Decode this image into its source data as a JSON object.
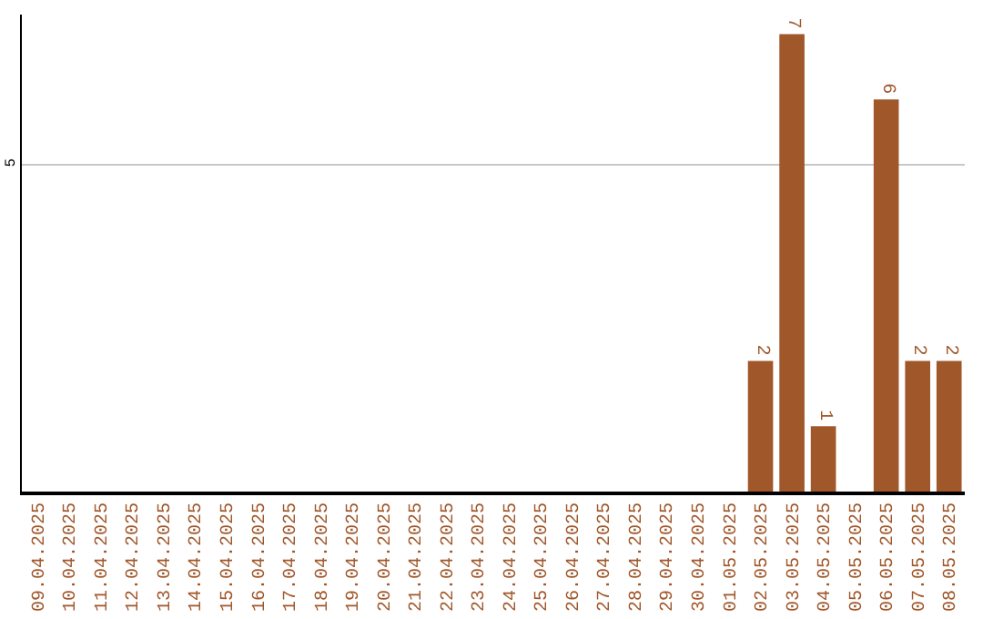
{
  "chart_data": {
    "type": "bar",
    "categories": [
      "09.04.2025",
      "10.04.2025",
      "11.04.2025",
      "12.04.2025",
      "13.04.2025",
      "14.04.2025",
      "15.04.2025",
      "16.04.2025",
      "17.04.2025",
      "18.04.2025",
      "19.04.2025",
      "20.04.2025",
      "21.04.2025",
      "22.04.2025",
      "23.04.2025",
      "24.04.2025",
      "25.04.2025",
      "26.04.2025",
      "27.04.2025",
      "28.04.2025",
      "29.04.2025",
      "30.04.2025",
      "01.05.2025",
      "02.05.2025",
      "03.05.2025",
      "04.05.2025",
      "05.05.2025",
      "06.05.2025",
      "07.05.2025",
      "08.05.2025"
    ],
    "values": [
      null,
      null,
      null,
      null,
      null,
      null,
      null,
      null,
      null,
      null,
      null,
      null,
      null,
      null,
      null,
      null,
      null,
      null,
      null,
      null,
      null,
      null,
      null,
      2,
      7,
      1,
      null,
      6,
      2,
      2
    ],
    "color": "#a0572a",
    "ylim": [
      0,
      7.3
    ],
    "yticks": [
      5
    ],
    "grid": "y",
    "data_labels": true
  }
}
